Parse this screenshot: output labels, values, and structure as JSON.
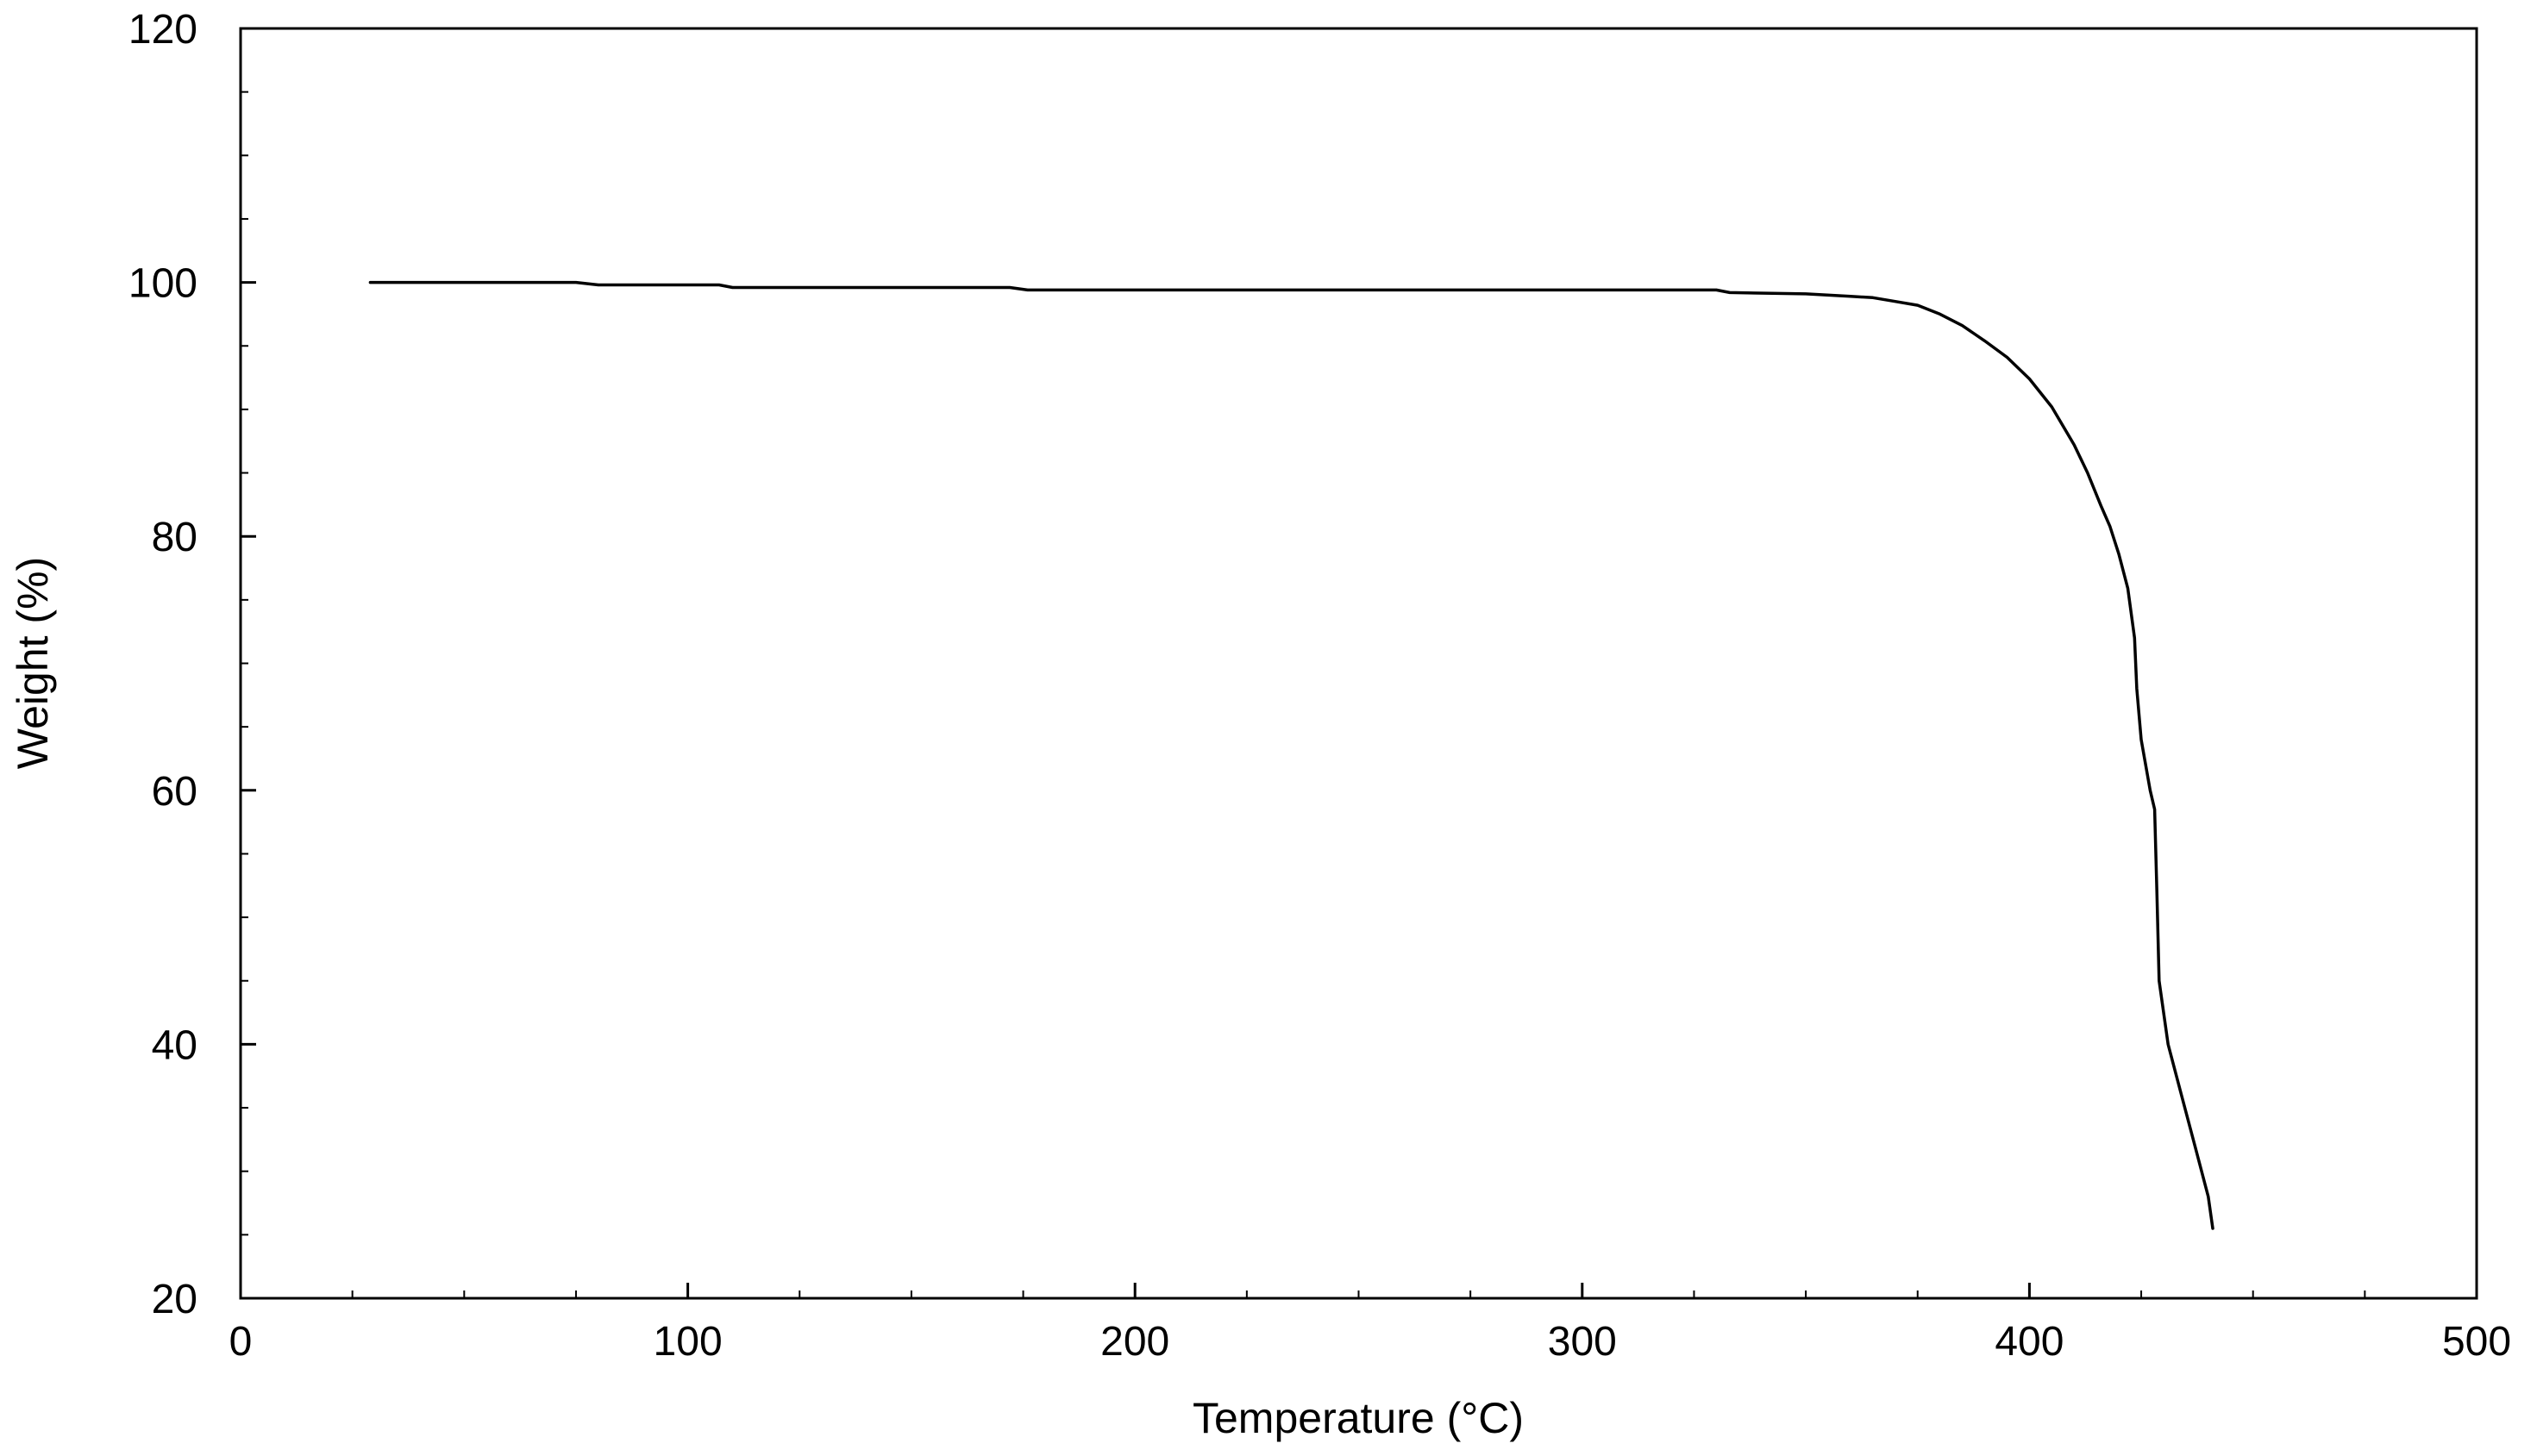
{
  "chart_data": {
    "type": "line",
    "title": "",
    "xlabel": "Temperature (°C)",
    "ylabel": "Weight (%)",
    "xlim": [
      0,
      500
    ],
    "ylim": [
      20,
      120
    ],
    "xticks": [
      0,
      100,
      200,
      300,
      400,
      500
    ],
    "yticks": [
      20,
      40,
      60,
      80,
      100,
      120
    ],
    "x_minor_step": 25,
    "y_minor_step": 5,
    "grid": false,
    "legend": "none",
    "line_color": "#000000",
    "series": [
      {
        "x": [
          29,
          50,
          75,
          80,
          107,
          110,
          150,
          172,
          176,
          200,
          250,
          300,
          330,
          333,
          350,
          360,
          365,
          370,
          375,
          380,
          385,
          390,
          395,
          400,
          405,
          410,
          413,
          416,
          418,
          420,
          422,
          423.5,
          424,
          425,
          427,
          428,
          428.5,
          429,
          431,
          434,
          437,
          440,
          441
        ],
        "y": [
          100,
          100,
          100,
          99.8,
          99.8,
          99.6,
          99.6,
          99.6,
          99.4,
          99.4,
          99.4,
          99.4,
          99.4,
          99.2,
          99.1,
          98.9,
          98.8,
          98.5,
          98.2,
          97.5,
          96.6,
          95.4,
          94.1,
          92.4,
          90.2,
          87.2,
          85.0,
          82.4,
          80.8,
          78.6,
          75.9,
          72,
          68,
          64,
          60,
          58.5,
          52,
          45,
          40,
          36,
          32,
          28,
          25.5
        ]
      }
    ]
  }
}
